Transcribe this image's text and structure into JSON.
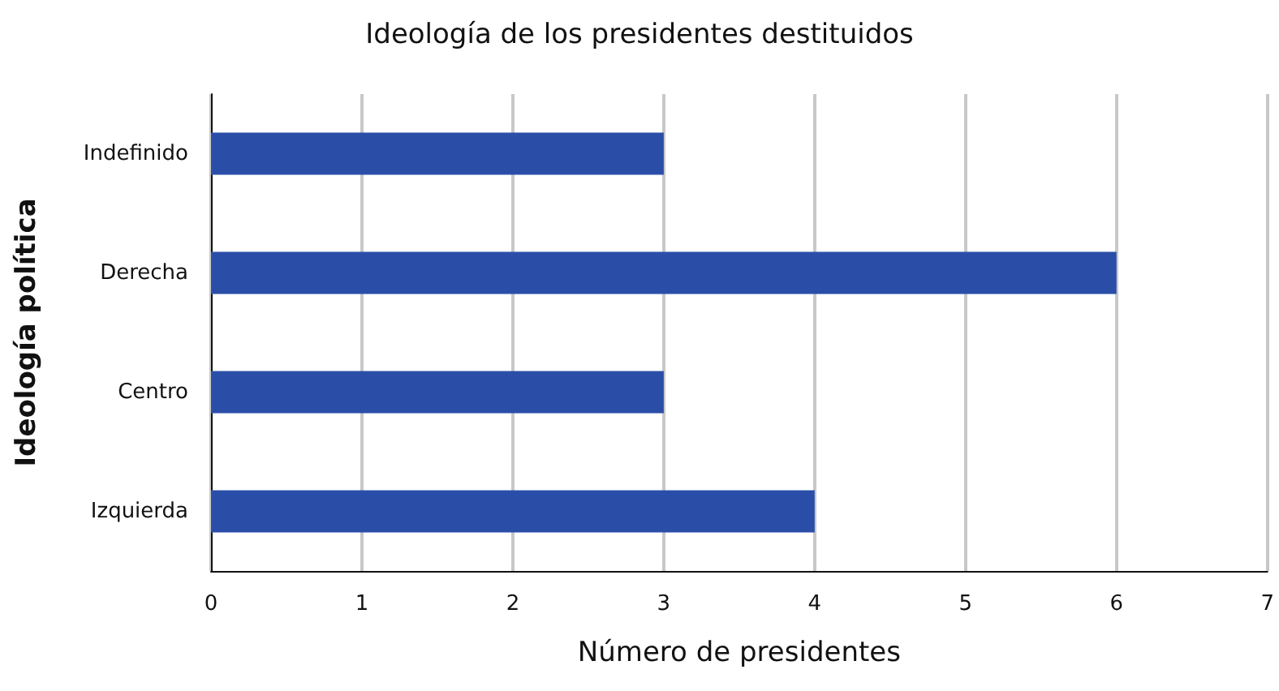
{
  "chart_data": {
    "type": "bar",
    "orientation": "horizontal",
    "title": "Ideología de los presidentes destituidos",
    "xlabel": "Número de presidentes",
    "ylabel": "Ideología política",
    "categories": [
      "Indefinido",
      "Derecha",
      "Centro",
      "Izquierda"
    ],
    "values": [
      3,
      6,
      3,
      4
    ],
    "color": "#2a4ea8",
    "xlim": [
      0,
      7
    ],
    "xticks": [
      0,
      1,
      2,
      3,
      4,
      5,
      6,
      7
    ],
    "grid": "x"
  }
}
